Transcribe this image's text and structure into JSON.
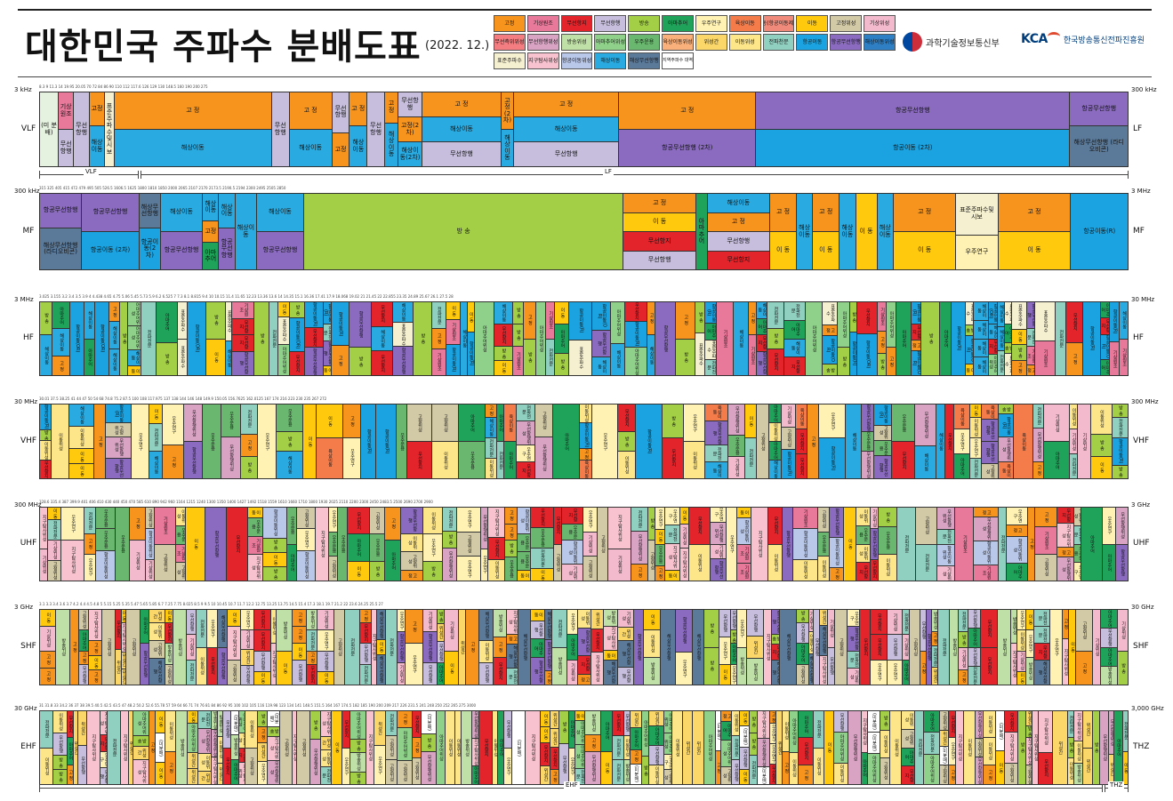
{
  "header": {
    "title": "대한민국 주파수 분배도표",
    "date": "(2022. 12.)",
    "ministry": "과학기술정보통신부",
    "agency_mark": "KCA",
    "agency_name": "한국방송통신전파진흥원"
  },
  "legend": [
    {
      "label": "고정",
      "color": "#f7941d"
    },
    {
      "label": "기상원조",
      "color": "#e8799b"
    },
    {
      "label": "무선항지",
      "color": "#e3242b"
    },
    {
      "label": "무선항행",
      "color": "#c6bedc"
    },
    {
      "label": "방송",
      "color": "#a2cf45"
    },
    {
      "label": "아마추어",
      "color": "#1fa35a"
    },
    {
      "label": "우주연구",
      "color": "#fff2b3"
    },
    {
      "label": "육상이동",
      "color": "#f47c4b"
    },
    {
      "label": "이동(항공이동제외)",
      "color": "#f08a7a"
    },
    {
      "label": "이동",
      "color": "#ffc90e"
    },
    {
      "label": "고정위성",
      "color": "#d2c9a6"
    },
    {
      "label": "기상위성",
      "color": "#f3b9cc"
    },
    {
      "label": "무선측위위성",
      "color": "#f37d80"
    },
    {
      "label": "무선항행위성",
      "color": "#d9a4c4"
    },
    {
      "label": "방송위성",
      "color": "#bfe0a6"
    },
    {
      "label": "아마추어위성",
      "color": "#8fd18a"
    },
    {
      "label": "우주운용",
      "color": "#6ab86f"
    },
    {
      "label": "육상이동위성",
      "color": "#f9b07a"
    },
    {
      "label": "위성간",
      "color": "#fbd76a"
    },
    {
      "label": "이동위성",
      "color": "#fde68a"
    },
    {
      "label": "전파천문",
      "color": "#8fd0c0"
    },
    {
      "label": "항공이동",
      "color": "#1aa3e0"
    },
    {
      "label": "항공무선항행",
      "color": "#8a6bbf"
    },
    {
      "label": "해상이동위성",
      "color": "#2f7fc4"
    },
    {
      "label": "표준주파수",
      "color": "#f5f0d0"
    },
    {
      "label": "지구탐사위성",
      "color": "#f8c3cf"
    },
    {
      "label": "항공이동위성",
      "color": "#b9c7e8"
    },
    {
      "label": "해상이동",
      "color": "#29abe2"
    },
    {
      "label": "해상무선항행",
      "color": "#5b7a9a"
    },
    {
      "label": "지역주파수 대역",
      "color": "#ffffff"
    }
  ],
  "bands": [
    {
      "name": "VLF",
      "start": "3 kHz",
      "end": "300 kHz",
      "right": "LF",
      "ticks": "8.3  9  11.3  14  19.95  20.05  70  72  84  86  90  110  112  117.6  126  129  130  148.5  160  190  200  275",
      "segments": [
        {
          "w": 1.7,
          "cells": [
            {
              "t": "(미 분 배)",
              "c": "#e6f2e0"
            }
          ]
        },
        {
          "w": 1.4,
          "cells": [
            {
              "t": "기상원조",
              "c": "#e8799b"
            },
            {
              "t": "무선항행",
              "c": "#c6bedc"
            }
          ]
        },
        {
          "w": 1.4,
          "cells": [
            {
              "t": "무선항행",
              "c": "#c6bedc"
            }
          ]
        },
        {
          "w": 1.4,
          "cells": [
            {
              "t": "고정",
              "c": "#f7941d"
            },
            {
              "t": "해상이동",
              "c": "#29abe2"
            }
          ]
        },
        {
          "w": 0.8,
          "cells": [
            {
              "t": "표준주파수및시보",
              "c": "#f5f0d0"
            }
          ]
        },
        {
          "w": 15,
          "cells": [
            {
              "t": "고 정",
              "c": "#f7941d"
            },
            {
              "t": "해상이동",
              "c": "#29abe2"
            }
          ]
        },
        {
          "w": 1.6,
          "cells": [
            {
              "t": "무선항행",
              "c": "#c6bedc"
            }
          ]
        },
        {
          "w": 4,
          "cells": [
            {
              "t": "고 정",
              "c": "#f7941d"
            },
            {
              "t": "해상이동",
              "c": "#29abe2"
            }
          ]
        },
        {
          "w": 1.6,
          "cells": [
            {
              "t": "무선항행",
              "c": "#c6bedc"
            },
            {
              "t": "고정",
              "c": "#f7941d"
            }
          ]
        },
        {
          "w": 1.6,
          "cells": [
            {
              "t": "고 정",
              "c": "#f7941d"
            },
            {
              "t": "해상이동",
              "c": "#29abe2"
            }
          ]
        },
        {
          "w": 1.6,
          "cells": [
            {
              "t": "무선항행",
              "c": "#c6bedc"
            }
          ]
        },
        {
          "w": 1.2,
          "cells": [
            {
              "t": "고 정",
              "c": "#f7941d"
            },
            {
              "t": "해상이동",
              "c": "#29abe2"
            }
          ]
        },
        {
          "w": 2.2,
          "cells": [
            {
              "t": "무선항행",
              "c": "#c6bedc"
            },
            {
              "t": "고정(2차)",
              "c": "#f7941d"
            },
            {
              "t": "해상이동(2차)",
              "c": "#29abe2"
            }
          ]
        },
        {
          "w": 7.5,
          "cells": [
            {
              "t": "고 정",
              "c": "#f7941d"
            },
            {
              "t": "해상이동",
              "c": "#29abe2"
            },
            {
              "t": "무선항행",
              "c": "#c6bedc"
            }
          ]
        },
        {
          "w": 1.1,
          "cells": [
            {
              "t": "고정(2차)",
              "c": "#f7941d"
            },
            {
              "t": "해상이동",
              "c": "#29abe2"
            }
          ]
        },
        {
          "w": 10,
          "cells": [
            {
              "t": "고 정",
              "c": "#f7941d"
            },
            {
              "t": "해상이동",
              "c": "#29abe2"
            },
            {
              "t": "무선항행",
              "c": "#c6bedc"
            }
          ]
        },
        {
          "w": 13,
          "cells": [
            {
              "t": "고 정",
              "c": "#f7941d"
            },
            {
              "t": "항공무선항행 (2차)",
              "c": "#8a6bbf"
            }
          ]
        },
        {
          "w": 30,
          "cells": [
            {
              "t": "항공무선항행",
              "c": "#8a6bbf"
            },
            {
              "t": "항공이동 (2차)",
              "c": "#1aa3e0"
            }
          ]
        },
        {
          "w": 5.5,
          "cells": [
            {
              "t": "항공무선항행",
              "c": "#8a6bbf"
            },
            {
              "t": "해상무선항행 (라디오비콘)",
              "c": "#5b7a9a"
            }
          ]
        }
      ]
    },
    {
      "name": "MF",
      "start": "300 kHz",
      "end": "3 MHz",
      "right": "MF",
      "ticks": "315  325  405  415  472  479  495  505  526.5  1606.5  1625  1800  1810  1850  2000  2065  2107  2170  2173.5  2190.5  2194  2300  2495  2505  2850",
      "segments": [
        {
          "w": 4,
          "cells": [
            {
              "t": "항공무선항행",
              "c": "#8a6bbf"
            },
            {
              "t": "해상무선항행 (라디오비콘)",
              "c": "#5b7a9a"
            }
          ]
        },
        {
          "w": 5.5,
          "cells": [
            {
              "t": "항공무선항행",
              "c": "#8a6bbf"
            },
            {
              "t": "항공이동 (2차)",
              "c": "#1aa3e0"
            }
          ]
        },
        {
          "w": 2,
          "cells": [
            {
              "t": "해상무선항행",
              "c": "#5b7a9a"
            },
            {
              "t": "항공이동(2차)",
              "c": "#1aa3e0"
            }
          ]
        },
        {
          "w": 4,
          "cells": [
            {
              "t": "해상이동",
              "c": "#29abe2"
            },
            {
              "t": "항공무선항행",
              "c": "#8a6bbf"
            }
          ]
        },
        {
          "w": 1.5,
          "cells": [
            {
              "t": "해상이동",
              "c": "#29abe2"
            },
            {
              "t": "고정",
              "c": "#f7941d"
            },
            {
              "t": "아마추어",
              "c": "#1fa35a"
            }
          ]
        },
        {
          "w": 1.5,
          "cells": [
            {
              "t": "해상이동",
              "c": "#29abe2"
            },
            {
              "t": "항공무선항행",
              "c": "#8a6bbf"
            }
          ]
        },
        {
          "w": 2,
          "cells": [
            {
              "t": "해상이동",
              "c": "#29abe2"
            }
          ]
        },
        {
          "w": 4.5,
          "cells": [
            {
              "t": "해상이동",
              "c": "#29abe2"
            },
            {
              "t": "항공무선항행",
              "c": "#8a6bbf"
            }
          ]
        },
        {
          "w": 31,
          "cells": [
            {
              "t": "방 송",
              "c": "#a2cf45"
            }
          ]
        },
        {
          "w": 7,
          "cells": [
            {
              "t": "고 정",
              "c": "#f7941d"
            },
            {
              "t": "이 동",
              "c": "#ffc90e"
            },
            {
              "t": "무선항지",
              "c": "#e3242b"
            },
            {
              "t": "무선항행",
              "c": "#c6bedc"
            }
          ]
        },
        {
          "w": 1,
          "cells": [
            {
              "t": "아마추어",
              "c": "#1fa35a"
            }
          ]
        },
        {
          "w": 6,
          "cells": [
            {
              "t": "해상이동",
              "c": "#29abe2"
            },
            {
              "t": "고 정",
              "c": "#f7941d"
            },
            {
              "t": "무선항행",
              "c": "#c6bedc"
            },
            {
              "t": "무선항지",
              "c": "#e3242b"
            }
          ]
        },
        {
          "w": 2.5,
          "cells": [
            {
              "t": "고 정",
              "c": "#f7941d"
            },
            {
              "t": "이 동",
              "c": "#ffc90e"
            }
          ]
        },
        {
          "w": 1.5,
          "cells": [
            {
              "t": "해상이동",
              "c": "#29abe2"
            }
          ]
        },
        {
          "w": 2.5,
          "cells": [
            {
              "t": "고 정",
              "c": "#f7941d"
            },
            {
              "t": "이 동",
              "c": "#ffc90e"
            }
          ]
        },
        {
          "w": 1.5,
          "cells": [
            {
              "t": "해상이동",
              "c": "#29abe2"
            }
          ]
        },
        {
          "w": 2,
          "cells": [
            {
              "t": "이 동",
              "c": "#ffc90e"
            }
          ]
        },
        {
          "w": 1.5,
          "cells": [
            {
              "t": "해상이동",
              "c": "#29abe2"
            }
          ]
        },
        {
          "w": 6,
          "cells": [
            {
              "t": "고 정",
              "c": "#f7941d"
            },
            {
              "t": "이 동",
              "c": "#ffc90e"
            }
          ]
        },
        {
          "w": 4,
          "cells": [
            {
              "t": "표준주파수및시보",
              "c": "#f5f0d0"
            },
            {
              "t": "우주연구",
              "c": "#fff2b3"
            }
          ]
        },
        {
          "w": 7,
          "cells": [
            {
              "t": "고 정",
              "c": "#f7941d"
            },
            {
              "t": "이 동",
              "c": "#ffc90e"
            }
          ]
        },
        {
          "w": 5.5,
          "cells": [
            {
              "t": "항공이동(R)",
              "c": "#1aa3e0"
            }
          ]
        }
      ]
    },
    {
      "name": "HF",
      "start": "3 MHz",
      "end": "30 MHz",
      "right": "HF",
      "ticks": "3.025  3.155  3.2  3.4  3.5  3.9  4  4.438  4.65  4.75  5.06  5.45  5.73  5.9  6.2  6.525  7  7.3  8.1  8.815  9.4  10  10.15  11.4  11.65  12.23  13.36  13.6  14  14.35  15.1  16.36  17.41  17.9  18.068  19.02  21  21.45  22  22.855  23.35  24.89  25.67  26.1  27.5  28",
      "pattern": "hf"
    },
    {
      "name": "VHF",
      "start": "30 MHz",
      "end": "300 MHz",
      "right": "VHF",
      "ticks": "30.01  37.5  38.25  41  44  47  50  54  68  74.8  75.2  87.5  100  108  117.975  137  138  144  146  148  149.9  150.05  156.7625  162.0125  167  174  216  223  230  235  267  272",
      "pattern": "vhf"
    },
    {
      "name": "UHF",
      "start": "300 MHz",
      "end": "3 GHz",
      "right": "UHF",
      "ticks": "328.6  335.4  387  399.9  401  406  410  430  440  450  470  585  610  890  942  960  1164  1215  1240  1300  1350  1400  1427  1492  1518  1559  1610  1660  1710  1800  1930  2025  2110  2200  2300  2450  2483.5  2500  2690  2700  2900",
      "pattern": "uhf"
    },
    {
      "name": "SHF",
      "start": "3 GHz",
      "end": "30 GHz",
      "right": "SHF",
      "ticks": "3.1  3.3  3.4  3.6  3.7  4.2  4.4  4.5  4.8  5  5.15  5.25  5.35  5.47  5.65  5.85  6.7  7.25  7.75  8.025  8.5  9  9.5  10  10.45  10.7  11.7  12.2  12.75  13.25  13.75  14.5  15.4  17.3  18.1  19.7  21.2  22  23.6  24.25  25.5  27",
      "pattern": "shf"
    },
    {
      "name": "EHF",
      "start": "30 GHz",
      "end": "3,000 GHz",
      "right": "THZ",
      "ticks": "31  31.8  33  34.2  36  37  38  39.5  40.5  42.5  43.5  47  48.2  50.2  52.6  55.78  57  59  64  66  71  74  76  81  84  86  92  95  100  102  105  116  119.98  123  134  141  148.5  151.5  164  167  174.5  182  185  190  200  209  217  226  231.5  241  248  250  252  265  275  3000",
      "pattern": "ehf"
    }
  ],
  "scales": {
    "vlf_label": "VLF",
    "lf_label": "LF",
    "ehf_label": "EHF",
    "thz_label": "THZ"
  },
  "pattern_cells": {
    "hf": [
      {
        "t": "항공이동(R)",
        "c": "#1aa3e0"
      },
      {
        "t": "고 정",
        "c": "#f7941d"
      },
      {
        "t": "이 동",
        "c": "#ffc90e"
      },
      {
        "t": "방 송",
        "c": "#a2cf45"
      },
      {
        "t": "해상이동",
        "c": "#29abe2"
      },
      {
        "t": "아마추어",
        "c": "#1fa35a"
      },
      {
        "t": "항공이동(OR)",
        "c": "#1aa3e0"
      },
      {
        "t": "표준주파수",
        "c": "#f5f0d0"
      },
      {
        "t": "고 정",
        "c": "#f7941d"
      },
      {
        "t": "방 송",
        "c": "#a2cf45"
      },
      {
        "t": "무선항지",
        "c": "#e3242b"
      },
      {
        "t": "해상이동",
        "c": "#29abe2"
      },
      {
        "t": "아마추어위성",
        "c": "#8fd18a"
      },
      {
        "t": "전파천문",
        "c": "#8fd0c0"
      },
      {
        "t": "항공무선항행",
        "c": "#8a6bbf"
      },
      {
        "t": "기상원조",
        "c": "#e8799b"
      }
    ],
    "vhf": [
      {
        "t": "고 정",
        "c": "#f7941d"
      },
      {
        "t": "이 동",
        "c": "#ffc90e"
      },
      {
        "t": "방 송",
        "c": "#a2cf45"
      },
      {
        "t": "항공무선항행",
        "c": "#8a6bbf"
      },
      {
        "t": "해상이동",
        "c": "#29abe2"
      },
      {
        "t": "아마추어",
        "c": "#1fa35a"
      },
      {
        "t": "기상위성",
        "c": "#f3b9cc"
      },
      {
        "t": "우주운용",
        "c": "#6ab86f"
      },
      {
        "t": "이동위성",
        "c": "#fde68a"
      },
      {
        "t": "무선항지",
        "c": "#e3242b"
      },
      {
        "t": "전파천문",
        "c": "#8fd0c0"
      },
      {
        "t": "항공이동(R)",
        "c": "#1aa3e0"
      },
      {
        "t": "고정위성",
        "c": "#d2c9a6"
      },
      {
        "t": "우주연구",
        "c": "#fff2b3"
      },
      {
        "t": "육상이동",
        "c": "#f47c4b"
      },
      {
        "t": "무선항행위성",
        "c": "#d9a4c4"
      }
    ],
    "uhf": [
      {
        "t": "고 정",
        "c": "#f7941d"
      },
      {
        "t": "이 동",
        "c": "#ffc90e"
      },
      {
        "t": "항공무선항행",
        "c": "#8a6bbf"
      },
      {
        "t": "기상원조",
        "c": "#e8799b"
      },
      {
        "t": "방 송",
        "c": "#a2cf45"
      },
      {
        "t": "이동위성",
        "c": "#fde68a"
      },
      {
        "t": "무선항지",
        "c": "#e3242b"
      },
      {
        "t": "지구탐사위성",
        "c": "#f8c3cf"
      },
      {
        "t": "우주연구",
        "c": "#fff2b3"
      },
      {
        "t": "전파천문",
        "c": "#8fd0c0"
      },
      {
        "t": "무선항행위성",
        "c": "#d9a4c4"
      },
      {
        "t": "아마추어",
        "c": "#1fa35a"
      },
      {
        "t": "기상위성",
        "c": "#f3b9cc"
      },
      {
        "t": "고정위성",
        "c": "#d2c9a6"
      },
      {
        "t": "항공이동위성",
        "c": "#b9c7e8"
      },
      {
        "t": "우주운용",
        "c": "#6ab86f"
      }
    ],
    "shf": [
      {
        "t": "고 정",
        "c": "#f7941d"
      },
      {
        "t": "이 동",
        "c": "#ffc90e"
      },
      {
        "t": "고정위성",
        "c": "#d2c9a6"
      },
      {
        "t": "무선항지",
        "c": "#e3242b"
      },
      {
        "t": "지구탐사위성",
        "c": "#f8c3cf"
      },
      {
        "t": "항공무선항행",
        "c": "#8a6bbf"
      },
      {
        "t": "우주연구",
        "c": "#fff2b3"
      },
      {
        "t": "전파천문",
        "c": "#8fd0c0"
      },
      {
        "t": "방송위성",
        "c": "#bfe0a6"
      },
      {
        "t": "이동위성",
        "c": "#fde68a"
      },
      {
        "t": "무선항행",
        "c": "#c6bedc"
      },
      {
        "t": "아마추어",
        "c": "#1fa35a"
      },
      {
        "t": "기상위성",
        "c": "#f3b9cc"
      },
      {
        "t": "위성간",
        "c": "#fbd76a"
      },
      {
        "t": "해상무선항행",
        "c": "#5b7a9a"
      },
      {
        "t": "방 송",
        "c": "#a2cf45"
      }
    ],
    "ehf": [
      {
        "t": "고 정",
        "c": "#f7941d"
      },
      {
        "t": "이 동",
        "c": "#ffc90e"
      },
      {
        "t": "지구탐사위성",
        "c": "#f8c3cf"
      },
      {
        "t": "전파천문",
        "c": "#8fd0c0"
      },
      {
        "t": "고정위성",
        "c": "#d2c9a6"
      },
      {
        "t": "무선항지",
        "c": "#e3242b"
      },
      {
        "t": "위성간",
        "c": "#fbd76a"
      },
      {
        "t": "우주연구",
        "c": "#fff2b3"
      },
      {
        "t": "이동위성",
        "c": "#fde68a"
      },
      {
        "t": "방송위성",
        "c": "#bfe0a6"
      },
      {
        "t": "아마추어",
        "c": "#1fa35a"
      },
      {
        "t": "아마추어위성",
        "c": "#8fd18a"
      },
      {
        "t": "무선항행",
        "c": "#c6bedc"
      },
      {
        "t": "방 송",
        "c": "#a2cf45"
      },
      {
        "t": "무선항행위성",
        "c": "#d9a4c4"
      },
      {
        "t": "(미분배)",
        "c": "#ffffff"
      }
    ]
  }
}
